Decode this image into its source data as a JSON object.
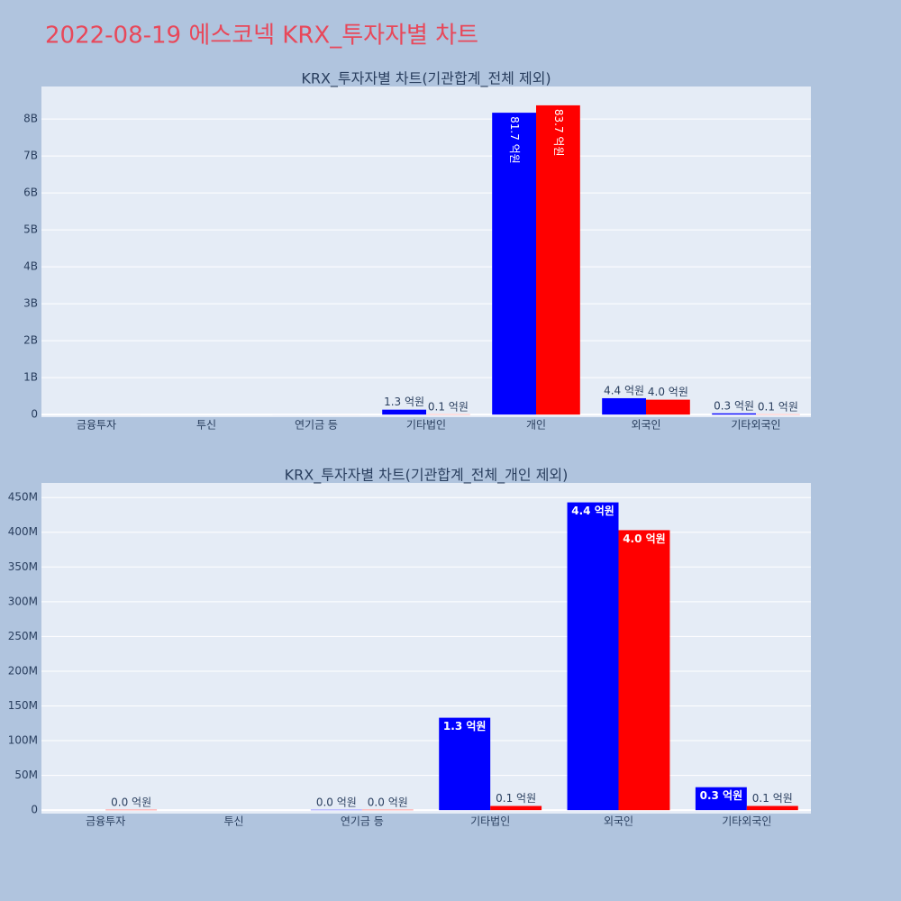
{
  "title": "2022-08-19 에스코넥 KRX_투자자별 차트",
  "chart_data": [
    {
      "type": "bar",
      "title": "KRX_투자자별 차트(기관합계_전체 제외)",
      "categories": [
        "금융투자",
        "투신",
        "연기금 등",
        "기타법인",
        "개인",
        "외국인",
        "기타외국인"
      ],
      "series": [
        {
          "color": "#0000ff",
          "values": [
            0,
            0,
            500000,
            133000000,
            8170000000,
            443000000,
            33000000
          ],
          "value_labels": [
            null,
            null,
            null,
            "1.3 억원",
            "81.7 억원",
            "4.4 억원",
            "0.3 억원"
          ]
        },
        {
          "color": "#ff0000",
          "values": [
            500000,
            0,
            500000,
            6000000,
            8370000000,
            403000000,
            6000000
          ],
          "value_labels": [
            null,
            null,
            null,
            "0.1 억원",
            "83.7 억원",
            "4.0 억원",
            "0.1 억원"
          ]
        }
      ],
      "ylim": [
        -70000000,
        8880000000
      ],
      "yticks": [
        0,
        {
          "value": 1000000000,
          "label": "1B"
        },
        {
          "value": 2000000000,
          "label": "2B"
        },
        {
          "value": 3000000000,
          "label": "3B"
        },
        {
          "value": 4000000000,
          "label": "4B"
        },
        {
          "value": 5000000000,
          "label": "5B"
        },
        {
          "value": 6000000000,
          "label": "6B"
        },
        {
          "value": 7000000000,
          "label": "7B"
        },
        {
          "value": 8000000000,
          "label": "8B"
        }
      ],
      "grid": true
    },
    {
      "type": "bar",
      "title": "KRX_투자자별 차트(기관합계_전체_개인 제외)",
      "categories": [
        "금융투자",
        "투신",
        "연기금 등",
        "기타법인",
        "외국인",
        "기타외국인"
      ],
      "series": [
        {
          "color": "#0000ff",
          "values": [
            0,
            0,
            500000,
            133000000,
            443000000,
            33000000
          ],
          "value_labels": [
            null,
            null,
            "0.0 억원",
            "1.3 억원",
            "4.4 억원",
            "0.3 억원"
          ]
        },
        {
          "color": "#ff0000",
          "values": [
            500000,
            0,
            500000,
            6000000,
            403000000,
            6000000
          ],
          "value_labels": [
            "0.0 억원",
            null,
            "0.0 억원",
            "0.1 억원",
            "4.0 억원",
            "0.1 억원"
          ]
        }
      ],
      "ylim": [
        -5000000,
        471000000
      ],
      "yticks": [
        0,
        {
          "value": 50000000,
          "label": "50M"
        },
        {
          "value": 100000000,
          "label": "100M"
        },
        {
          "value": 150000000,
          "label": "150M"
        },
        {
          "value": 200000000,
          "label": "200M"
        },
        {
          "value": 250000000,
          "label": "250M"
        },
        {
          "value": 300000000,
          "label": "300M"
        },
        {
          "value": 350000000,
          "label": "350M"
        },
        {
          "value": 400000000,
          "label": "400M"
        },
        {
          "value": 450000000,
          "label": "450M"
        }
      ],
      "grid": true
    }
  ]
}
